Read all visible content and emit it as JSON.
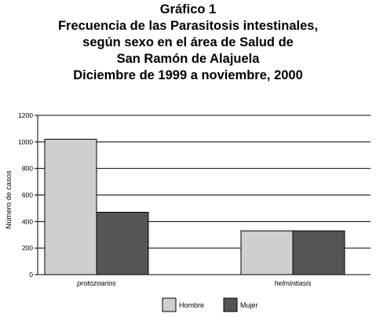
{
  "chart_data": {
    "type": "bar",
    "title_lines": [
      "Gráfico 1",
      "Frecuencia de las Parasitosis intestinales,",
      "según sexo en el área de Salud de",
      "San Ramón de Alajuela",
      "Diciembre de 1999 a noviembre, 2000"
    ],
    "categories": [
      "protozoarios",
      "helmintiasis"
    ],
    "series": [
      {
        "name": "Hombre",
        "values": [
          1020,
          330
        ],
        "color": "#cfcfcf"
      },
      {
        "name": "Mujer",
        "values": [
          470,
          330
        ],
        "color": "#555555"
      }
    ],
    "xlabel": "",
    "ylabel": "Número de casos",
    "ylim": [
      0,
      1200
    ],
    "yticks": [
      0,
      200,
      400,
      600,
      800,
      1000,
      1200
    ],
    "ytick_labels": [
      "0",
      "200",
      "400",
      "600",
      "800",
      "1000",
      "1200"
    ],
    "grid": true,
    "legend_position": "bottom"
  }
}
